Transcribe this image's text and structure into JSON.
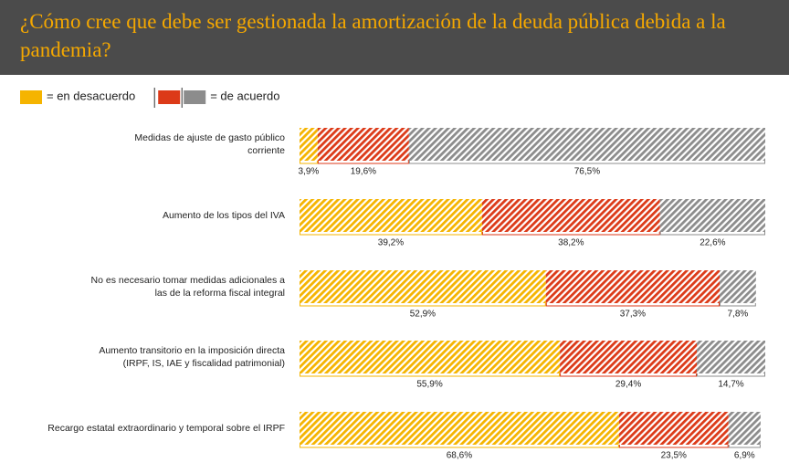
{
  "chart_data": {
    "type": "stacked-bar-horizontal",
    "title": "¿Cómo cree que debe ser gestionada la amortización de la deuda pública debida a la pandemia?",
    "legend": [
      {
        "label": "= en desacuerdo",
        "colors": [
          "#f5b400"
        ]
      },
      {
        "label": "= de acuerdo",
        "colors": [
          "#dc3a18",
          "#8c8c8c"
        ]
      }
    ],
    "categories": [
      [
        "Medidas de ajuste de gasto público",
        "corriente"
      ],
      [
        "Aumento de los tipos del IVA"
      ],
      [
        "No es necesario tomar medidas adicionales a",
        "las de la reforma fiscal integral"
      ],
      [
        "Aumento transitorio en la imposición directa",
        "(IRPF, IS, IAE y fiscalidad patrimonial)"
      ],
      [
        "Recargo estatal extraordinario y temporal sobre el IRPF"
      ]
    ],
    "series": [
      {
        "color": "#f5b400",
        "values": [
          3.9,
          39.2,
          52.9,
          55.9,
          68.6
        ],
        "value_labels": [
          "3,9%",
          "39,2%",
          "52,9%",
          "55,9%",
          "68,6%"
        ]
      },
      {
        "color": "#dc3a18",
        "values": [
          19.6,
          38.2,
          37.3,
          29.4,
          23.5
        ],
        "value_labels": [
          "19,6%",
          "38,2%",
          "37,3%",
          "29,4%",
          "23,5%"
        ]
      },
      {
        "color": "#8c8c8c",
        "values": [
          76.5,
          22.6,
          7.8,
          14.7,
          6.9
        ],
        "value_labels": [
          "76,5%",
          "22,6%",
          "7,8%",
          "14,7%",
          "6,9%"
        ]
      }
    ],
    "xlim": [
      0,
      100
    ]
  }
}
